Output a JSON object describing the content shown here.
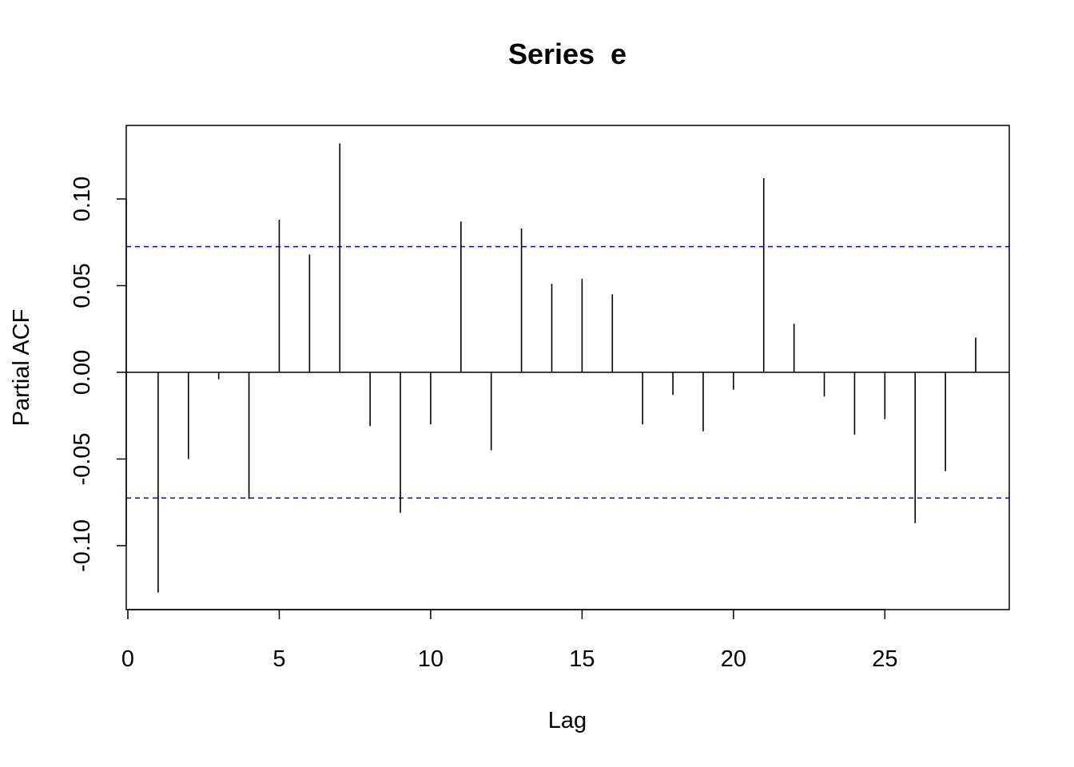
{
  "chart_data": {
    "type": "bar",
    "title": "Series  e",
    "xlabel": "Lag",
    "ylabel": "Partial ACF",
    "xlim": [
      0,
      29
    ],
    "ylim": [
      -0.135,
      0.14
    ],
    "x_ticks": [
      0,
      5,
      10,
      15,
      20,
      25
    ],
    "x_tick_labels": [
      "0",
      "5",
      "10",
      "15",
      "20",
      "25"
    ],
    "y_ticks": [
      -0.1,
      -0.05,
      0.0,
      0.05,
      0.1
    ],
    "y_tick_labels": [
      "-0.10",
      "-0.05",
      "0.00",
      "0.05",
      "0.10"
    ],
    "lags": [
      1,
      2,
      3,
      4,
      5,
      6,
      7,
      8,
      9,
      10,
      11,
      12,
      13,
      14,
      15,
      16,
      17,
      18,
      19,
      20,
      21,
      22,
      23,
      24,
      25,
      26,
      27,
      28
    ],
    "values": [
      -0.127,
      -0.05,
      -0.004,
      -0.073,
      0.088,
      0.068,
      0.132,
      -0.031,
      -0.081,
      -0.03,
      0.087,
      -0.045,
      0.083,
      0.051,
      0.054,
      0.045,
      -0.03,
      -0.013,
      -0.034,
      -0.01,
      0.112,
      0.028,
      -0.014,
      -0.036,
      -0.027,
      -0.087,
      -0.057,
      0.02
    ],
    "confidence_bound": 0.0725,
    "confidence_color": "#0000cc",
    "grid": false,
    "legend": "none"
  }
}
